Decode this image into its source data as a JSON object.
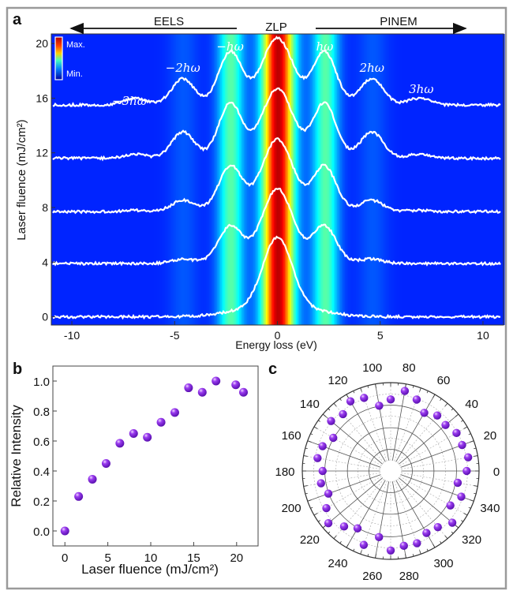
{
  "colors": {
    "frame": "#9a9a9a",
    "marker": "#8a2be2",
    "curve": "#ffffff",
    "background_colormap": "jet"
  },
  "chart_data": [
    {
      "panel": "a",
      "type": "heatmap",
      "xlabel": "Energy loss (eV)",
      "ylabel": "Laser fluence (mJ/cm²)",
      "xlim": [
        -11,
        11
      ],
      "ylim": [
        -0.6,
        20.7
      ],
      "xticks": [
        -10,
        -5,
        0,
        5,
        10
      ],
      "yticks": [
        0,
        4,
        8,
        12,
        16,
        20
      ],
      "colorbar": {
        "max_label": "Max.",
        "min_label": "Min."
      },
      "top_annotations": {
        "left": "EELS",
        "center": "ZLP",
        "right": "PINEM"
      },
      "peak_labels": [
        {
          "text": "−3hω",
          "energy": -7.2
        },
        {
          "text": "−2hω",
          "energy": -4.6
        },
        {
          "text": "−hω",
          "energy": -2.3
        },
        {
          "text": "hω",
          "energy": 2.3
        },
        {
          "text": "2hω",
          "energy": 4.6
        },
        {
          "text": "3hω",
          "energy": 7.0
        }
      ],
      "photon_energy_eV": 2.3,
      "spectra": [
        {
          "fluence": 0,
          "baseline": 0,
          "zlp": 5.8,
          "sidebands": [
            0,
            0,
            0
          ]
        },
        {
          "fluence": 4,
          "baseline": 3.9,
          "zlp": 5.5,
          "sidebands": [
            2.4,
            0.3,
            0
          ]
        },
        {
          "fluence": 8,
          "baseline": 7.7,
          "zlp": 5.3,
          "sidebands": [
            3.0,
            0.8,
            0.1
          ]
        },
        {
          "fluence": 12,
          "baseline": 11.6,
          "zlp": 5.1,
          "sidebands": [
            3.7,
            1.9,
            0.3
          ]
        },
        {
          "fluence": 16,
          "baseline": 15.5,
          "zlp": 4.9,
          "sidebands": [
            3.6,
            1.9,
            0.5
          ]
        }
      ]
    },
    {
      "panel": "b",
      "type": "scatter",
      "xlabel": "Laser fluence (mJ/cm²)",
      "ylabel": "Relative Intensity",
      "xlim": [
        -1.4,
        22.5
      ],
      "ylim": [
        -0.1,
        1.1
      ],
      "xticks": [
        0,
        5,
        10,
        15,
        20
      ],
      "yticks": [
        "0.0",
        "0.2",
        "0.4",
        "0.6",
        "0.8",
        "1.0"
      ],
      "x": [
        0,
        1.6,
        3.2,
        4.8,
        6.4,
        8.0,
        9.6,
        11.2,
        12.8,
        14.4,
        16.0,
        17.6,
        19.9,
        20.8
      ],
      "y": [
        0,
        0.23,
        0.345,
        0.45,
        0.585,
        0.65,
        0.625,
        0.725,
        0.79,
        0.955,
        0.925,
        1.0,
        0.975,
        0.925
      ]
    },
    {
      "panel": "c",
      "type": "scatter",
      "projection": "polar",
      "angle_ticks": [
        0,
        20,
        40,
        60,
        80,
        100,
        120,
        140,
        160,
        180,
        200,
        220,
        240,
        260,
        280,
        300,
        320,
        340
      ],
      "radial_range": [
        0,
        1
      ],
      "theta": [
        0,
        10,
        20,
        30,
        40,
        50,
        60,
        70,
        80,
        90,
        100,
        110,
        120,
        130,
        140,
        150,
        160,
        170,
        180,
        190,
        200,
        210,
        220,
        230,
        240,
        250,
        260,
        270,
        280,
        290,
        300,
        310,
        320,
        330,
        340,
        350
      ],
      "r": [
        0.86,
        0.89,
        0.86,
        0.86,
        0.81,
        0.82,
        0.76,
        0.86,
        0.92,
        0.81,
        0.75,
        0.88,
        0.91,
        0.84,
        0.88,
        0.75,
        0.82,
        0.84,
        0.77,
        0.8,
        0.75,
        0.84,
        0.92,
        0.82,
        0.75,
        0.89,
        0.76,
        0.9,
        0.86,
        0.87,
        0.81,
        0.83,
        0.91,
        0.78,
        0.85,
        0.77
      ]
    }
  ]
}
